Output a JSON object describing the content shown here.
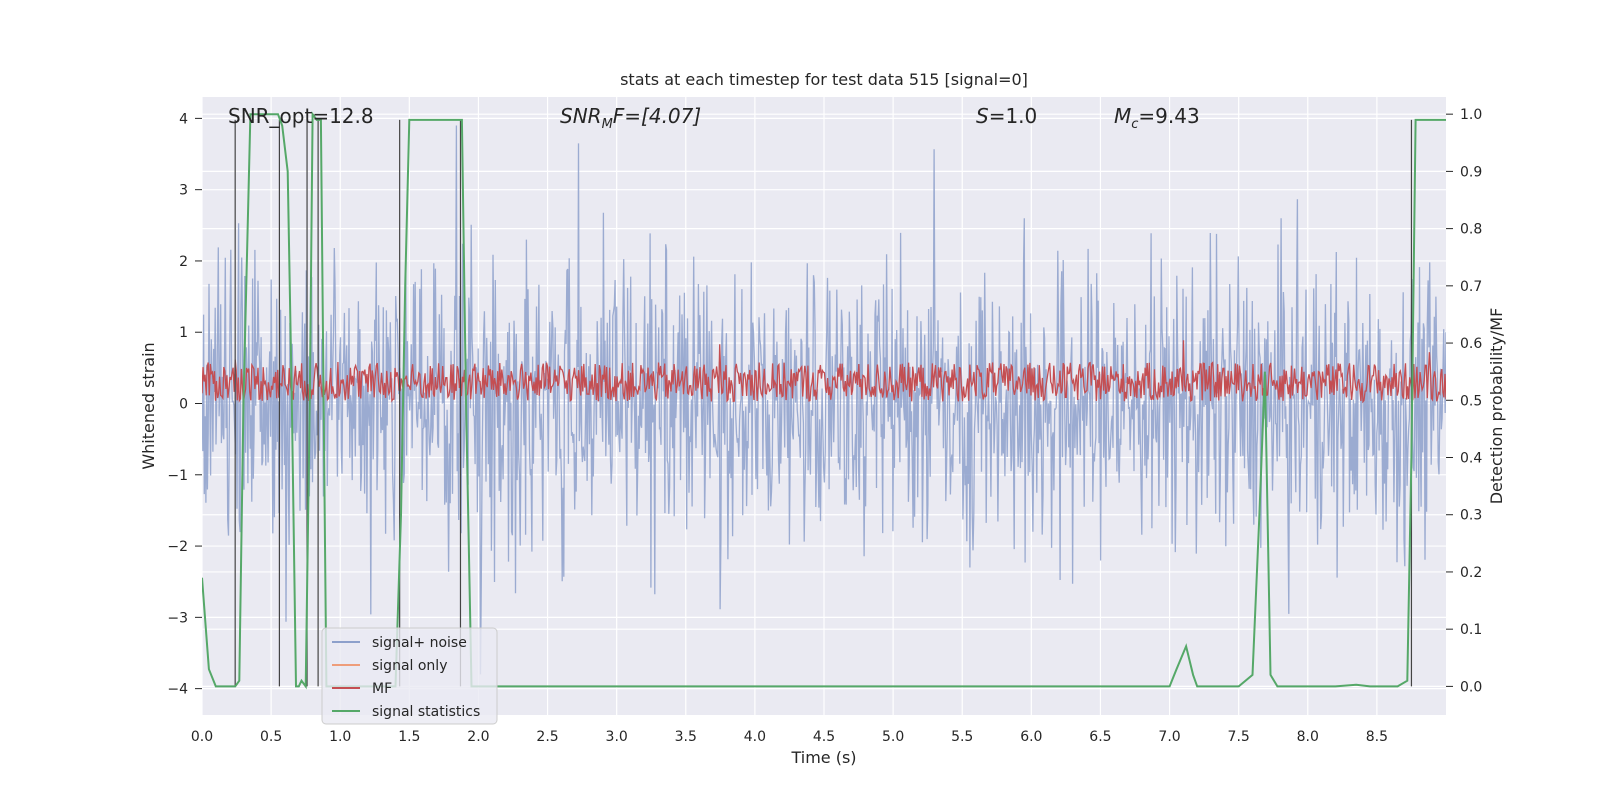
{
  "chart_data": {
    "type": "line",
    "title": "stats at each timestep for test data 515 [signal=0]",
    "xlabel": "Time (s)",
    "ylabel_left": "Whitened strain",
    "ylabel_right": "Detection probability/MF",
    "xlim": [
      0.0,
      9.0
    ],
    "ylim_left": [
      -4.37,
      4.3
    ],
    "ylim_right": [
      -0.05,
      1.03
    ],
    "grid": true,
    "x_ticks": [
      "0.0",
      "0.5",
      "1.0",
      "1.5",
      "2.0",
      "2.5",
      "3.0",
      "3.5",
      "4.0",
      "4.5",
      "5.0",
      "5.5",
      "6.0",
      "6.5",
      "7.0",
      "7.5",
      "8.0",
      "8.5"
    ],
    "y_ticks_left": [
      "4",
      "3",
      "2",
      "1",
      "0",
      "−1",
      "−2",
      "−3",
      "−4"
    ],
    "y_ticks_right": [
      "1.0",
      "0.9",
      "0.8",
      "0.7",
      "0.6",
      "0.5",
      "0.4",
      "0.3",
      "0.2",
      "0.1",
      "0.0"
    ],
    "annotations": {
      "snr_opt": "SNR_opt=12.8",
      "snr_mf_main": "SNR",
      "snr_mf_sub": "M",
      "snr_mf_rest": "F=[4.07]",
      "s_main": "S",
      "s_rest": "=1.0",
      "mc_main": "M",
      "mc_sub": "c",
      "mc_rest": "=9.43"
    },
    "legend": {
      "position": "lower-left",
      "entries": [
        {
          "label": "signal+ noise",
          "color": "#8da0cb"
        },
        {
          "label": "signal only",
          "color": "#ee9d7a"
        },
        {
          "label": "MF",
          "color": "#c44e52"
        },
        {
          "label": "signal statistics",
          "color": "#55a868"
        }
      ]
    },
    "series": [
      {
        "name": "signal+ noise",
        "color": "#8da0cb",
        "axis": "left",
        "description_range": [
          -3.8,
          3.9
        ],
        "typical_abs": 1.3
      },
      {
        "name": "MF",
        "color": "#c44e52",
        "axis": "left",
        "baseline": 0.3,
        "typical_range": [
          0.0,
          0.7
        ]
      },
      {
        "name": "signal statistics",
        "color": "#55a868",
        "axis": "right",
        "x": [
          0.0,
          0.05,
          0.1,
          0.15,
          0.2,
          0.24,
          0.27,
          0.3,
          0.35,
          0.4,
          0.45,
          0.5,
          0.55,
          0.58,
          0.62,
          0.65,
          0.68,
          0.7,
          0.72,
          0.75,
          0.78,
          0.8,
          0.83,
          0.86,
          0.88,
          0.9,
          0.95,
          1.0,
          1.05,
          1.1,
          1.15,
          1.2,
          1.25,
          1.3,
          1.35,
          1.4,
          1.44,
          1.47,
          1.5,
          1.55,
          1.6,
          1.65,
          1.7,
          1.75,
          1.8,
          1.85,
          1.88,
          1.91,
          1.95,
          2.0,
          2.05,
          2.1,
          2.5,
          3.0,
          3.5,
          4.0,
          4.5,
          5.0,
          5.5,
          6.0,
          6.5,
          7.0,
          7.05,
          7.12,
          7.17,
          7.2,
          7.3,
          7.4,
          7.5,
          7.6,
          7.65,
          7.69,
          7.73,
          7.78,
          7.85,
          8.0,
          8.2,
          8.35,
          8.45,
          8.55,
          8.65,
          8.72,
          8.75,
          8.78,
          8.82,
          8.9,
          9.0
        ],
        "y": [
          0.19,
          0.03,
          0.0,
          0.0,
          0.0,
          0.0,
          0.01,
          0.5,
          1.0,
          1.0,
          1.0,
          1.0,
          1.0,
          0.98,
          0.9,
          0.5,
          0.0,
          0.0,
          0.01,
          0.0,
          0.5,
          1.0,
          0.99,
          0.99,
          0.5,
          0.0,
          0.0,
          0.0,
          0.0,
          0.0,
          0.0,
          0.0,
          0.0,
          0.0,
          0.0,
          0.0,
          0.3,
          0.7,
          0.99,
          0.99,
          0.99,
          0.99,
          0.99,
          0.99,
          0.99,
          0.99,
          0.99,
          0.5,
          0.0,
          0.0,
          0.0,
          0.0,
          0.0,
          0.0,
          0.0,
          0.0,
          0.0,
          0.0,
          0.0,
          0.0,
          0.0,
          0.0,
          0.03,
          0.07,
          0.02,
          0.0,
          0.0,
          0.0,
          0.0,
          0.02,
          0.3,
          0.55,
          0.02,
          0.0,
          0.0,
          0.0,
          0.0,
          0.003,
          0.0,
          0.0,
          0.0,
          0.01,
          0.4,
          0.99,
          0.99,
          0.99,
          0.99
        ]
      }
    ],
    "vertical_markers_x": [
      0.24,
      0.56,
      0.76,
      0.84,
      1.43,
      1.87,
      8.75
    ]
  }
}
